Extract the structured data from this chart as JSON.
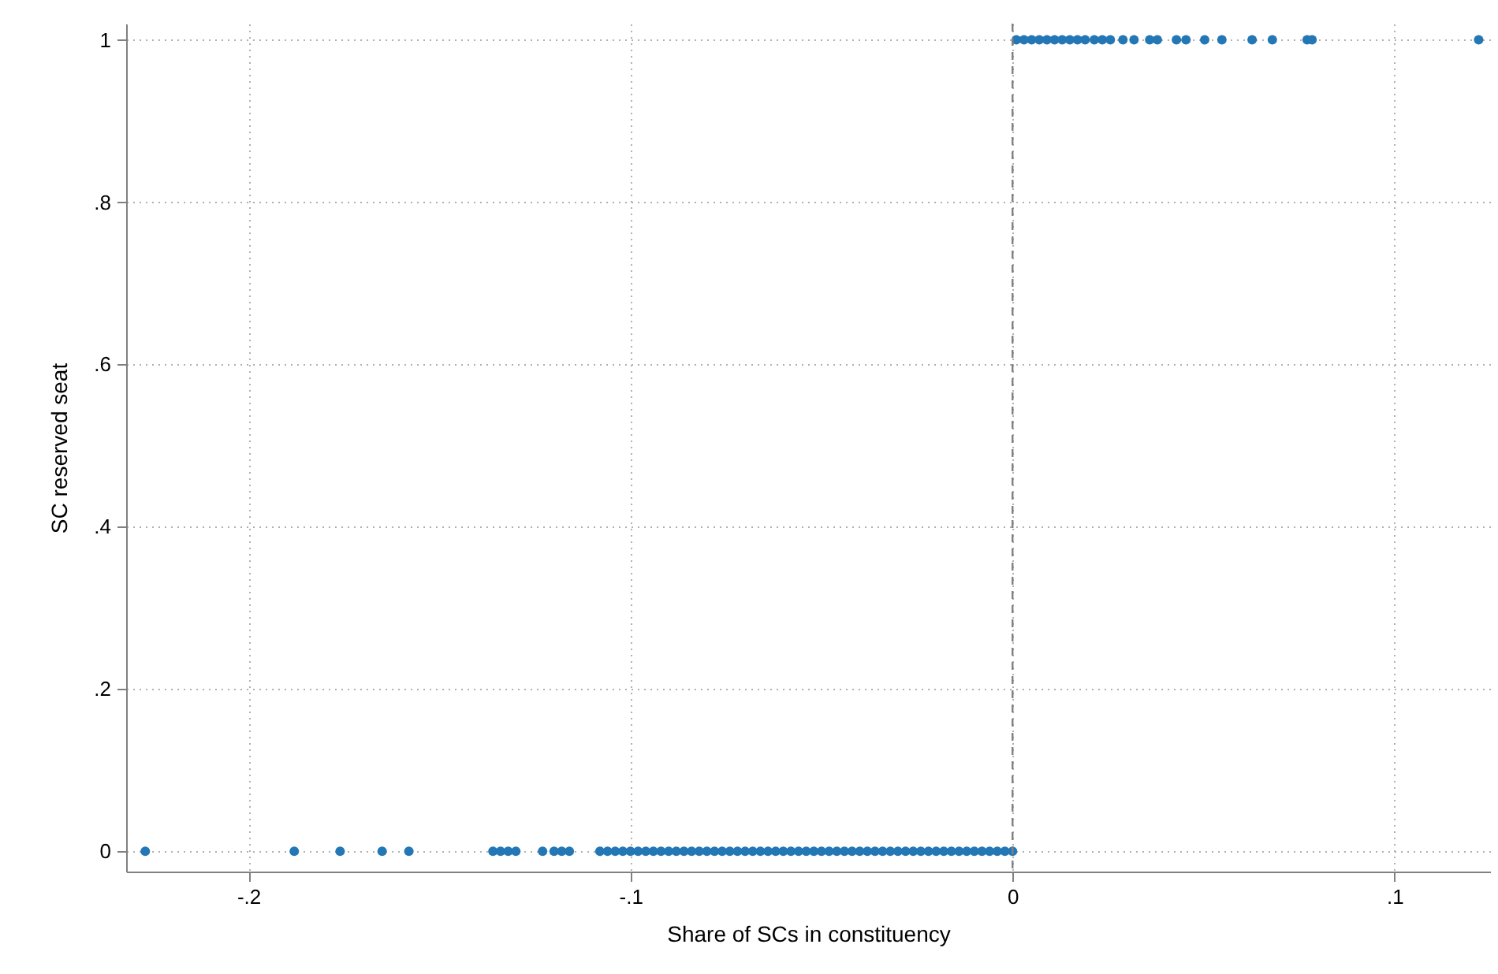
{
  "chart_data": {
    "type": "scatter",
    "xlabel": "Share of SCs in constituency",
    "ylabel": "SC reserved seat",
    "xlim": [
      -0.232,
      0.125
    ],
    "ylim": [
      -0.025,
      1.02
    ],
    "xticks": [
      {
        "value": -0.2,
        "label": "-.2"
      },
      {
        "value": -0.1,
        "label": "-.1"
      },
      0,
      {
        "value": 0.1,
        "label": ".1"
      }
    ],
    "yticks": [
      0,
      {
        "value": 0.2,
        "label": ".2"
      },
      {
        "value": 0.4,
        "label": ".4"
      },
      {
        "value": 0.6,
        "label": ".6"
      },
      {
        "value": 0.8,
        "label": ".8"
      },
      1
    ],
    "grid": true,
    "marker": "circle",
    "ref_lines": [
      {
        "axis": "x",
        "value": 0,
        "color": "#808080",
        "line_style": "dashed"
      }
    ],
    "series": [
      {
        "color": "#2377b5",
        "x": [
          -0.227,
          -0.188,
          -0.176,
          -0.165,
          -0.158,
          -0.136,
          -0.134,
          -0.132,
          -0.13,
          -0.123,
          -0.12,
          -0.118,
          -0.116,
          -0.108,
          -0.106,
          -0.104,
          -0.102,
          -0.1,
          -0.098,
          -0.096,
          -0.094,
          -0.092,
          -0.09,
          -0.088,
          -0.086,
          -0.084,
          -0.082,
          -0.08,
          -0.078,
          -0.076,
          -0.074,
          -0.072,
          -0.07,
          -0.068,
          -0.066,
          -0.064,
          -0.062,
          -0.06,
          -0.058,
          -0.056,
          -0.054,
          -0.052,
          -0.05,
          -0.048,
          -0.046,
          -0.044,
          -0.042,
          -0.04,
          -0.038,
          -0.036,
          -0.034,
          -0.032,
          -0.03,
          -0.028,
          -0.026,
          -0.024,
          -0.022,
          -0.02,
          -0.018,
          -0.016,
          -0.014,
          -0.012,
          -0.01,
          -0.008,
          -0.006,
          -0.004,
          -0.002,
          0,
          0.001,
          0.003,
          0.005,
          0.007,
          0.009,
          0.011,
          0.013,
          0.015,
          0.017,
          0.019,
          0.0214,
          0.0235,
          0.0256,
          0.0289,
          0.0318,
          0.0359,
          0.0379,
          0.0429,
          0.0454,
          0.0503,
          0.0548,
          0.0627,
          0.068,
          0.0771,
          0.0784,
          0.122
        ],
        "values": [
          0,
          0,
          0,
          0,
          0,
          0,
          0,
          0,
          0,
          0,
          0,
          0,
          0,
          0,
          0,
          0,
          0,
          0,
          0,
          0,
          0,
          0,
          0,
          0,
          0,
          0,
          0,
          0,
          0,
          0,
          0,
          0,
          0,
          0,
          0,
          0,
          0,
          0,
          0,
          0,
          0,
          0,
          0,
          0,
          0,
          0,
          0,
          0,
          0,
          0,
          0,
          0,
          0,
          0,
          0,
          0,
          0,
          0,
          0,
          0,
          0,
          0,
          0,
          0,
          0,
          0,
          0,
          0,
          1,
          1,
          1,
          1,
          1,
          1,
          1,
          1,
          1,
          1,
          1,
          1,
          1,
          1,
          1,
          1,
          1,
          1,
          1,
          1,
          1,
          1,
          1,
          1,
          1,
          1
        ]
      }
    ]
  }
}
